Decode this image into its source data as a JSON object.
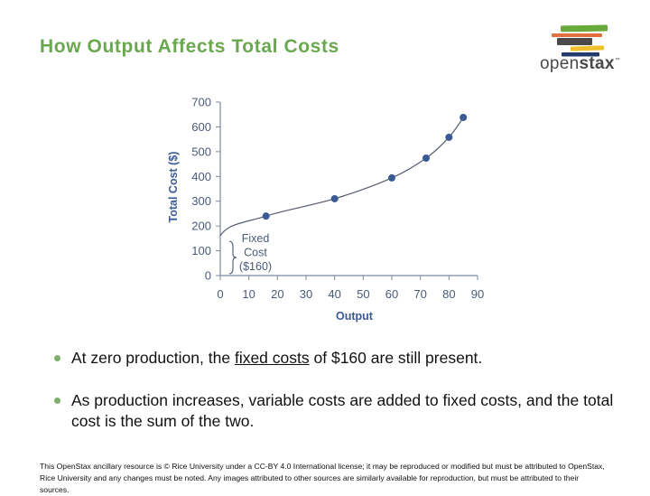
{
  "slide": {
    "title": "How Output Affects Total Costs",
    "logo": {
      "text_light": "open",
      "text_bold": "stax",
      "tm": "™",
      "bar_colors": [
        "#6aaa3a",
        "#e0713e",
        "#4a4a4a",
        "#f0c030",
        "#233a6e"
      ]
    },
    "bullets": [
      {
        "pre": "At zero production, the ",
        "link": "fixed costs",
        "post": " of $160 are still present."
      },
      {
        "pre": "As production increases, variable costs are added to fixed costs, and the total cost is the sum of the two.",
        "link": "",
        "post": ""
      }
    ],
    "footer": "This OpenStax ancillary resource is © Rice University under a CC-BY 4.0 International license; it may be reproduced or modified but must be attributed to OpenStax, Rice University and any changes must be noted.  Any images attributed to other sources are similarly available for reproduction, but must be attributed to their sources."
  },
  "chart_data": {
    "type": "line",
    "title": "",
    "xlabel": "Output",
    "ylabel": "Total Cost ($)",
    "xlim": [
      0,
      90
    ],
    "ylim": [
      0,
      700
    ],
    "xticks": [
      0,
      10,
      20,
      30,
      40,
      50,
      60,
      70,
      80,
      90
    ],
    "yticks": [
      0,
      100,
      200,
      300,
      400,
      500,
      600,
      700
    ],
    "grid": false,
    "legend": null,
    "series": [
      {
        "name": "Total Cost",
        "x": [
          16,
          40,
          60,
          72,
          80,
          85
        ],
        "y": [
          240,
          310,
          394,
          474,
          558,
          638
        ],
        "curve_start": [
          0,
          160
        ],
        "color": "#3a5a96"
      }
    ],
    "annotations": [
      {
        "text": "Fixed Cost ($160)",
        "lines": [
          "Fixed",
          "Cost",
          "($160)"
        ],
        "type": "brace",
        "range": [
          0,
          160
        ]
      }
    ],
    "colors": {
      "axis": "#7a8aa4",
      "tick_label": "#4a5a78",
      "axis_title": "#3a5a96",
      "curve": "#555c6e",
      "marker": "#3a5a96"
    }
  }
}
